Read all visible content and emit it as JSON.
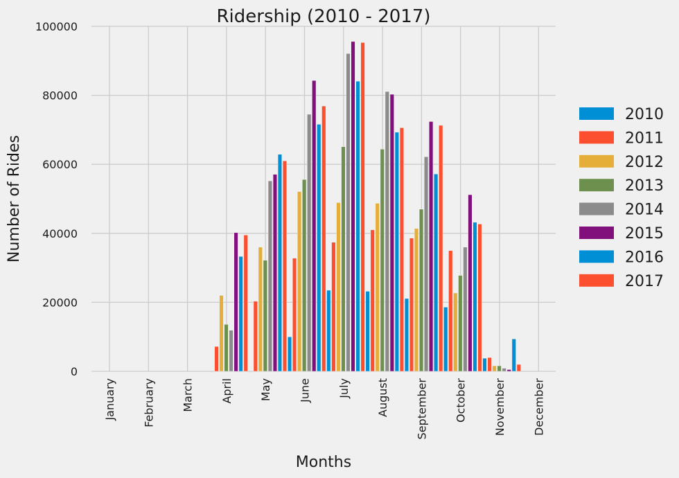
{
  "chart_data": {
    "type": "bar",
    "title": "Ridership (2010 - 2017)",
    "xlabel": "Months",
    "ylabel": "Number of Rides",
    "categories": [
      "January",
      "February",
      "March",
      "April",
      "May",
      "June",
      "July",
      "August",
      "September",
      "October",
      "November",
      "December"
    ],
    "ylim": [
      0,
      100000
    ],
    "yticks": [
      "0",
      "20000",
      "40000",
      "60000",
      "80000",
      "100000"
    ],
    "grid": true,
    "legend_position": "right",
    "series": [
      {
        "name": "2010",
        "color": "#008fd5",
        "values": [
          0,
          0,
          0,
          0,
          0,
          10000,
          23500,
          23200,
          21100,
          18600,
          3800,
          0
        ]
      },
      {
        "name": "2011",
        "color": "#fc4f30",
        "values": [
          0,
          0,
          0,
          7200,
          20300,
          32800,
          37400,
          41000,
          38600,
          35000,
          4000,
          0
        ]
      },
      {
        "name": "2012",
        "color": "#e5ae38",
        "values": [
          0,
          0,
          0,
          22000,
          36000,
          52100,
          48900,
          48700,
          41400,
          22700,
          1600,
          0
        ]
      },
      {
        "name": "2013",
        "color": "#6d904f",
        "values": [
          0,
          0,
          0,
          13600,
          32200,
          55600,
          65100,
          64400,
          47000,
          27800,
          1600,
          0
        ]
      },
      {
        "name": "2014",
        "color": "#8b8b8b",
        "values": [
          0,
          0,
          0,
          11900,
          55200,
          74500,
          92100,
          81100,
          62200,
          36000,
          900,
          0
        ]
      },
      {
        "name": "2015",
        "color": "#810f7c",
        "values": [
          0,
          0,
          0,
          40200,
          57100,
          84300,
          95600,
          80300,
          72400,
          51200,
          500,
          0
        ]
      },
      {
        "name": "2016",
        "color": "#008fd5",
        "values": [
          0,
          0,
          0,
          33300,
          62900,
          71600,
          84100,
          69300,
          57200,
          43200,
          9400,
          0
        ]
      },
      {
        "name": "2017",
        "color": "#fc4f30",
        "values": [
          0,
          0,
          0,
          39500,
          61000,
          76900,
          95300,
          70600,
          71300,
          42700,
          2000,
          0
        ]
      }
    ]
  }
}
